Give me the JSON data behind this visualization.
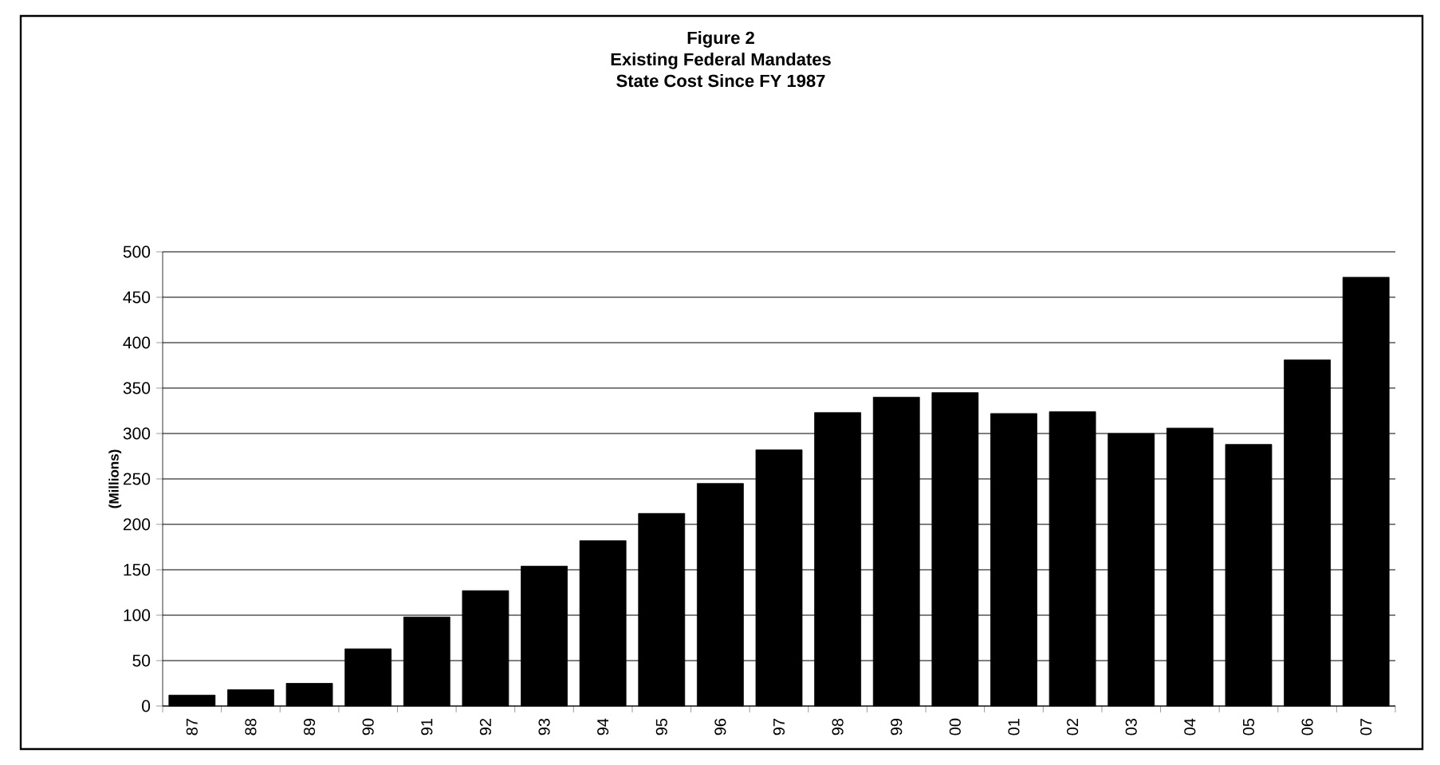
{
  "chart_data": {
    "type": "bar",
    "title": "Figure 2\nExisting Federal Mandates\nState Cost Since FY 1987",
    "ylabel": "(Millions)",
    "categories": [
      "87",
      "88",
      "89",
      "90",
      "91",
      "92",
      "93",
      "94",
      "95",
      "96",
      "97",
      "98",
      "99",
      "00",
      "01",
      "02",
      "03",
      "04",
      "05",
      "06",
      "07"
    ],
    "values": [
      12,
      18,
      25,
      63,
      98,
      127,
      154,
      182,
      212,
      245,
      282,
      323,
      340,
      345,
      322,
      324,
      300,
      306,
      288,
      381,
      472
    ],
    "color": "#000000",
    "ylim": [
      0,
      500
    ],
    "yticks": [
      0,
      50,
      100,
      150,
      200,
      250,
      300,
      350,
      400,
      450,
      500
    ],
    "grid": "y"
  }
}
